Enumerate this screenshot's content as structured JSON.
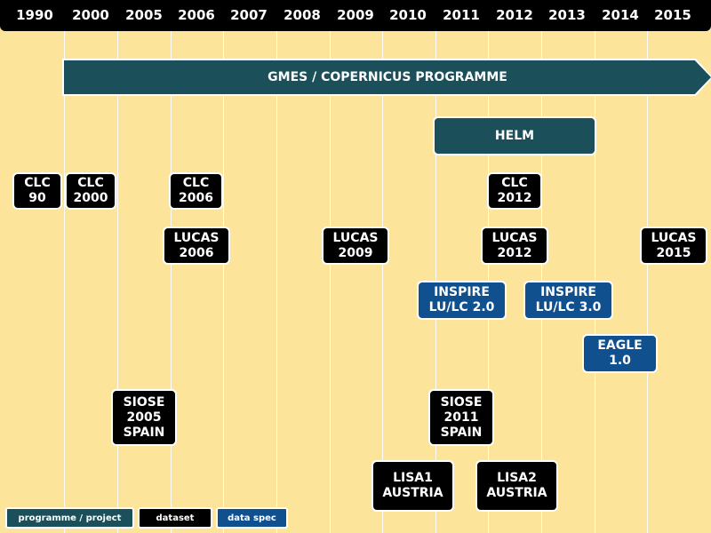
{
  "years": [
    "1990",
    "2000",
    "2005",
    "2006",
    "2007",
    "2008",
    "2009",
    "2010",
    "2011",
    "2012",
    "2013",
    "2014",
    "2015"
  ],
  "programme": {
    "label": "GMES / COPERNICUS PROGRAMME"
  },
  "helm": {
    "label": "HELM"
  },
  "datasets": {
    "clc90": "CLC\n90",
    "clc2000": "CLC\n2000",
    "clc2006": "CLC\n2006",
    "clc2012": "CLC\n2012",
    "lucas2006": "LUCAS\n2006",
    "lucas2009": "LUCAS\n2009",
    "lucas2012": "LUCAS\n2012",
    "lucas2015": "LUCAS\n2015",
    "siose2005": "SIOSE\n2005\nSPAIN",
    "siose2011": "SIOSE\n2011\nSPAIN",
    "lisa1": "LISA1\nAUSTRIA",
    "lisa2": "LISA2\nAUSTRIA"
  },
  "specs": {
    "inspire2": "INSPIRE\nLU/LC 2.0",
    "inspire3": "INSPIRE\nLU/LC 3.0",
    "eagle": "EAGLE\n1.0"
  },
  "legend": {
    "programme": "programme / project",
    "dataset": "dataset",
    "spec": "data spec"
  },
  "colors": {
    "background": "#fde49b",
    "programme": "#1b4f5a",
    "dataset": "#000000",
    "spec": "#11508f"
  }
}
